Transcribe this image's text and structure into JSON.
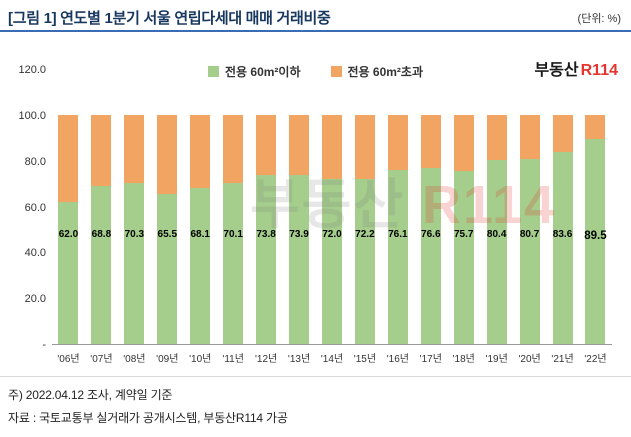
{
  "header": {
    "title": "[그림 1] 연도별 1분기 서울 연립다세대 매매 거래비중",
    "unit_label": "(단위: %)"
  },
  "logo": {
    "text_black": "부동산",
    "text_red": "R114"
  },
  "legend": [
    {
      "label": "전용 60m²이하",
      "color": "#a5ce8c"
    },
    {
      "label": "전용 60m²초과",
      "color": "#f2a463"
    }
  ],
  "watermark": {
    "text_gray": "부동산 ",
    "text_red": "R114"
  },
  "chart_data": {
    "type": "bar",
    "stacked": true,
    "title": "연도별 1분기 서울 연립다세대 매매 거래비중",
    "unit": "%",
    "categories": [
      "'06년",
      "'07년",
      "'08년",
      "'09년",
      "'10년",
      "'11년",
      "'12년",
      "'13년",
      "'14년",
      "'15년",
      "'16년",
      "'17년",
      "'18년",
      "'19년",
      "'20년",
      "'21년",
      "'22년"
    ],
    "series": [
      {
        "name": "전용 60m²이하",
        "color": "#a5ce8c",
        "values": [
          62.0,
          68.8,
          70.3,
          65.5,
          68.1,
          70.1,
          73.8,
          73.9,
          72.0,
          72.2,
          76.1,
          76.6,
          75.7,
          80.4,
          80.7,
          83.6,
          89.5
        ]
      },
      {
        "name": "전용 60m²초과",
        "color": "#f2a463",
        "values": [
          38.0,
          31.2,
          29.7,
          34.5,
          31.9,
          29.9,
          26.2,
          26.1,
          28.0,
          27.8,
          23.9,
          23.4,
          24.3,
          19.6,
          19.3,
          16.4,
          10.5
        ]
      }
    ],
    "data_labels": [
      "62.0",
      "68.8",
      "70.3",
      "65.5",
      "68.1",
      "70.1",
      "73.8",
      "73.9",
      "72.0",
      "72.2",
      "76.1",
      "76.6",
      "75.7",
      "80.4",
      "80.7",
      "83.6",
      "89.5"
    ],
    "ylim": [
      0,
      120
    ],
    "yticks": [
      {
        "label": "120.0",
        "value": 120
      },
      {
        "label": "100.0",
        "value": 100
      },
      {
        "label": "80.0",
        "value": 80
      },
      {
        "label": "60.0",
        "value": 60
      },
      {
        "label": "40.0",
        "value": 40
      },
      {
        "label": "20.0",
        "value": 20
      },
      {
        "label": "-",
        "value": 0
      }
    ],
    "grid": false,
    "legend_position": "top-center"
  },
  "footer": {
    "note1": "주) 2022.04.12 조사, 계약일 기준",
    "note2": "자료 : 국토교통부 실거래가 공개시스템, 부동산R114 가공"
  }
}
